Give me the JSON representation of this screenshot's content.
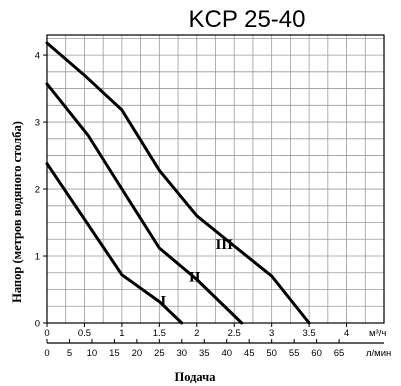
{
  "chart_data": {
    "type": "line",
    "title": "KCP 25-40",
    "ylabel": "Напор (метров водяного столба)",
    "xlabel": "Подача",
    "x_unit": "м³/ч",
    "x2_unit": "л/мин",
    "xlim": [
      0,
      4.5
    ],
    "ylim": [
      0,
      4.3
    ],
    "grid": true,
    "x_ticks": [
      "0",
      "0.5",
      "1",
      "1.5",
      "2",
      "2.5",
      "3",
      "3.5",
      "4"
    ],
    "x_tick_values": [
      0,
      0.5,
      1,
      1.5,
      2,
      2.5,
      3,
      3.5,
      4
    ],
    "x2_ticks": [
      "0",
      "5",
      "10",
      "15",
      "20",
      "25",
      "30",
      "35",
      "40",
      "45",
      "50",
      "55",
      "60",
      "65"
    ],
    "x2_tick_values": [
      0,
      5,
      10,
      15,
      20,
      25,
      30,
      35,
      40,
      45,
      50,
      55,
      60,
      65
    ],
    "y_ticks": [
      "0",
      "1",
      "2",
      "3",
      "4"
    ],
    "y_tick_values": [
      0,
      1,
      2,
      3,
      4
    ],
    "series": [
      {
        "name": "I",
        "x": [
          0,
          1.0,
          1.5,
          1.8
        ],
        "y": [
          2.38,
          0.72,
          0.32,
          0.0
        ]
      },
      {
        "name": "II",
        "x": [
          0,
          0.55,
          1.0,
          1.5,
          2.0,
          2.6
        ],
        "y": [
          3.57,
          2.8,
          2.0,
          1.12,
          0.65,
          0.0
        ]
      },
      {
        "name": "III",
        "x": [
          0,
          0.5,
          1.0,
          1.5,
          2.0,
          2.5,
          3.0,
          3.5
        ],
        "y": [
          4.18,
          3.7,
          3.18,
          2.28,
          1.6,
          1.15,
          0.7,
          0.0
        ]
      }
    ]
  }
}
